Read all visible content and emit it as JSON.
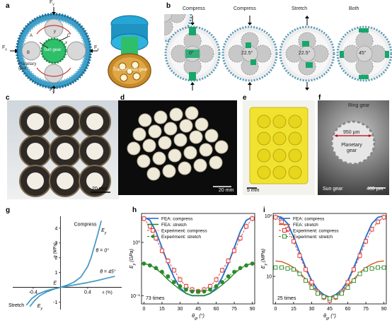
{
  "panels": {
    "a": {
      "label": "a",
      "forces": [
        "F",
        "F",
        "F",
        "F"
      ],
      "force_subs": [
        "y",
        "y",
        "x",
        "x"
      ],
      "sun_gear": "Sun gear",
      "planetary_gear": "Planetary gear",
      "transmission": "Transmission gear",
      "point_labels": [
        "A",
        "B",
        "C"
      ],
      "axis_x": "x",
      "axis_y": "y"
    },
    "b": {
      "label": "b",
      "titles": [
        "Compress",
        "Compress",
        "Stretch",
        "Both"
      ],
      "angles": [
        "0°",
        "22.5°",
        "22.5°",
        "45°"
      ]
    },
    "c": {
      "label": "c",
      "scale": "20 mm"
    },
    "d": {
      "label": "d",
      "scale": "20 mm"
    },
    "e": {
      "label": "e",
      "scale": "5 mm"
    },
    "f": {
      "label": "f",
      "scale": "400 μm",
      "ring_gear": "Ring gear",
      "dim": "950 μm",
      "planetary_gear": "Planetary gear",
      "sun_gear": "Sun gear"
    },
    "g": {
      "label": "g"
    },
    "h": {
      "label": "h"
    },
    "i": {
      "label": "i"
    }
  },
  "chart_data": [
    {
      "id": "g",
      "type": "line",
      "xlabel": "ε (%)",
      "ylabel": "σ (MPa)",
      "xlim": [
        -0.7,
        0.9
      ],
      "ylim": [
        -1.5,
        4.8
      ],
      "y_ticks": [
        -1,
        1,
        2,
        3,
        4
      ],
      "x_ticks": [
        -0.4,
        0.4
      ],
      "annotations": {
        "compress": "Compress",
        "stretch": "Stretch",
        "ey_top": "E",
        "ey_top_sub": "y",
        "ey_bot": "E",
        "ey_bot_sub": "y",
        "e_origin": "E",
        "theta0": "θ = 0°",
        "theta45": "θ = 45°"
      },
      "series": [
        {
          "x": [
            -0.45,
            -0.38,
            -0.3,
            -0.2,
            -0.1,
            0,
            0.1,
            0.2,
            0.3,
            0.4,
            0.45,
            0.5,
            0.55,
            0.6
          ],
          "y": [
            -1.3,
            -0.9,
            -0.55,
            -0.3,
            -0.12,
            0,
            0.15,
            0.35,
            0.7,
            1.4,
            2.0,
            2.8,
            3.6,
            4.5
          ]
        },
        {
          "x": [
            -0.5,
            -0.42,
            -0.33,
            -0.22,
            -0.1,
            0,
            0.1,
            0.2,
            0.35,
            0.5,
            0.65,
            0.8
          ],
          "y": [
            -1.2,
            -0.75,
            -0.45,
            -0.25,
            -0.1,
            0,
            0.08,
            0.16,
            0.28,
            0.42,
            0.58,
            0.75
          ]
        }
      ]
    },
    {
      "id": "h",
      "type": "line",
      "xlabel": "θ",
      "xlabel_sub": "gr",
      "xlabel_unit": " (°)",
      "ylabel": "E",
      "ylabel_sub": "y",
      "ylabel_unit": " (GPa)",
      "yscale": "log",
      "ylim": [
        0.07,
        3.5
      ],
      "xlim": [
        -2,
        92
      ],
      "x_ticks": [
        0,
        15,
        30,
        45,
        60,
        75,
        90
      ],
      "y_tick_labels": [
        "10⁻¹",
        "10⁰"
      ],
      "note": "73 times",
      "legend": [
        "FEA: compress",
        "FEA: stretch",
        "Experiment: compress",
        "Experiment: stretch"
      ],
      "colors": {
        "compress": "#1f6fd0",
        "stretch": "#2a8a2a",
        "exp_compress": "#e03030"
      },
      "series": [
        {
          "name": "FEA: compress",
          "x": [
            0,
            5,
            10,
            15,
            20,
            25,
            30,
            35,
            40,
            45,
            50,
            55,
            60,
            65,
            70,
            75,
            80,
            85,
            90
          ],
          "y": [
            3.0,
            2.6,
            1.6,
            0.8,
            0.4,
            0.22,
            0.14,
            0.11,
            0.1,
            0.1,
            0.1,
            0.11,
            0.14,
            0.22,
            0.4,
            0.8,
            1.6,
            2.6,
            3.0
          ]
        },
        {
          "name": "FEA: stretch",
          "x": [
            0,
            5,
            10,
            15,
            20,
            25,
            30,
            35,
            40,
            45,
            50,
            55,
            60,
            65,
            70,
            75,
            80,
            85,
            90
          ],
          "y": [
            0.4,
            0.38,
            0.32,
            0.26,
            0.2,
            0.16,
            0.13,
            0.11,
            0.1,
            0.1,
            0.1,
            0.11,
            0.13,
            0.16,
            0.2,
            0.26,
            0.32,
            0.38,
            0.4
          ]
        },
        {
          "name": "Experiment: compress",
          "x": [
            0,
            5,
            10,
            15,
            20,
            25,
            30,
            35,
            40,
            45,
            50,
            55,
            60,
            65,
            70,
            75,
            80,
            85,
            90
          ],
          "y": [
            2.8,
            2.0,
            1.2,
            0.7,
            0.45,
            0.3,
            0.2,
            0.15,
            0.13,
            0.12,
            0.13,
            0.15,
            0.2,
            0.3,
            0.45,
            0.7,
            1.2,
            2.0,
            2.8
          ]
        },
        {
          "name": "Experiment: stretch",
          "x": [
            0,
            5,
            10,
            15,
            20,
            25,
            30,
            35,
            40,
            45,
            50,
            55,
            60,
            65,
            70,
            75,
            80,
            85,
            90
          ],
          "y": [
            0.4,
            0.37,
            0.33,
            0.28,
            0.23,
            0.18,
            0.15,
            0.13,
            0.12,
            0.12,
            0.12,
            0.13,
            0.15,
            0.18,
            0.23,
            0.28,
            0.33,
            0.37,
            0.4
          ]
        }
      ]
    },
    {
      "id": "i",
      "type": "line",
      "xlabel": "θ",
      "xlabel_sub": "gr",
      "xlabel_unit": " (°)",
      "ylabel": "E",
      "ylabel_sub": "y",
      "ylabel_unit": " (MPa)",
      "yscale": "log",
      "ylim": [
        3.5,
        110
      ],
      "xlim": [
        -2,
        92
      ],
      "x_ticks": [
        0,
        15,
        30,
        45,
        60,
        75,
        90
      ],
      "y_tick_labels": [
        "10",
        "10²"
      ],
      "note": "25 times",
      "legend": [
        "FEA: compress",
        "FEA: stretch",
        "Experiment: compress",
        "Experiment: stretch"
      ],
      "colors": {
        "compress": "#1f6fd0",
        "stretch": "#d05a1a",
        "exp_compress": "#e03030",
        "exp_stretch": "#2a8a2a"
      },
      "series": [
        {
          "name": "FEA: compress",
          "x": [
            0,
            5,
            10,
            15,
            20,
            25,
            30,
            35,
            40,
            45,
            50,
            55,
            60,
            65,
            70,
            75,
            80,
            85,
            90
          ],
          "y": [
            100,
            95,
            75,
            45,
            25,
            14,
            8.5,
            6,
            5,
            4.5,
            5,
            6,
            8.5,
            14,
            25,
            45,
            75,
            95,
            100
          ]
        },
        {
          "name": "FEA: stretch",
          "x": [
            0,
            5,
            10,
            15,
            20,
            25,
            30,
            35,
            40,
            45,
            50,
            55,
            60,
            65,
            70,
            75,
            80,
            85,
            90
          ],
          "y": [
            18,
            17.5,
            16,
            14,
            11.5,
            9,
            7,
            5.5,
            4.8,
            4.5,
            4.8,
            5.5,
            7,
            9,
            11.5,
            14,
            16,
            17.5,
            18
          ]
        },
        {
          "name": "Experiment: compress",
          "x": [
            0,
            5,
            10,
            15,
            20,
            25,
            30,
            35,
            40,
            45,
            50,
            55,
            60,
            65,
            70,
            75,
            80,
            85,
            90
          ],
          "y": [
            95,
            80,
            60,
            38,
            22,
            13,
            8,
            5.5,
            4.5,
            4.0,
            4.5,
            5.5,
            8,
            13,
            22,
            38,
            60,
            80,
            95
          ]
        },
        {
          "name": "Experiment: stretch",
          "x": [
            0,
            5,
            10,
            15,
            20,
            25,
            30,
            35,
            40,
            45,
            50,
            55,
            60,
            65,
            70,
            75,
            80,
            85,
            90
          ],
          "y": [
            14,
            14,
            13.5,
            13,
            11,
            8.5,
            6.5,
            5.2,
            4.6,
            4.3,
            4.6,
            5.2,
            6.5,
            8.5,
            11,
            13,
            13.5,
            14,
            14
          ]
        }
      ]
    }
  ]
}
